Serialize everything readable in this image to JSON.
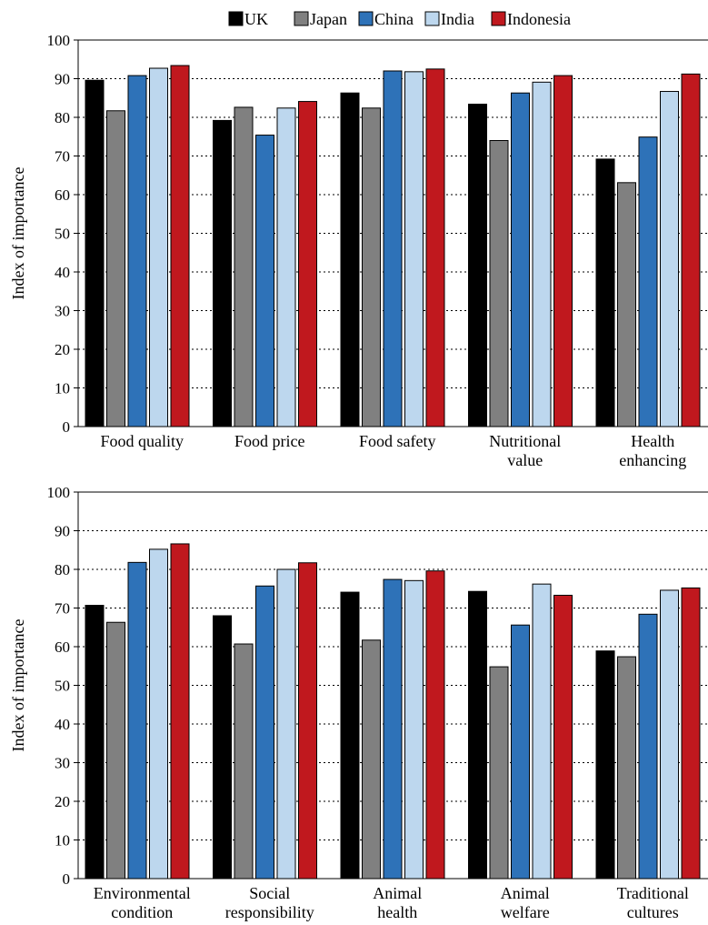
{
  "chart_data": [
    {
      "type": "bar",
      "ylabel": "Index of importance",
      "ylim": [
        0,
        100
      ],
      "yticks": [
        0,
        10,
        20,
        30,
        40,
        50,
        60,
        70,
        80,
        90,
        100
      ],
      "grid": "horizontal dotted",
      "legend": "top",
      "categories": [
        [
          "Food quality"
        ],
        [
          "Food price"
        ],
        [
          "Food safety"
        ],
        [
          "Nutritional",
          "value"
        ],
        [
          "Health",
          "enhancing"
        ]
      ],
      "series": [
        {
          "name": "UK",
          "color": "#000000",
          "values": [
            89.6,
            79.2,
            86.3,
            83.4,
            69.2
          ]
        },
        {
          "name": "Japan",
          "color": "#808080",
          "values": [
            81.7,
            82.6,
            82.4,
            74.0,
            63.1
          ]
        },
        {
          "name": "China",
          "color": "#2e72b8",
          "values": [
            90.8,
            75.4,
            92.0,
            86.3,
            74.9
          ]
        },
        {
          "name": "India",
          "color": "#bdd7ee",
          "values": [
            92.7,
            82.4,
            91.8,
            89.1,
            86.7
          ]
        },
        {
          "name": "Indonesia",
          "color": "#c0181e",
          "values": [
            93.4,
            84.1,
            92.5,
            90.8,
            91.2
          ]
        }
      ]
    },
    {
      "type": "bar",
      "ylabel": "Index of importance",
      "ylim": [
        0,
        100
      ],
      "yticks": [
        0,
        10,
        20,
        30,
        40,
        50,
        60,
        70,
        80,
        90,
        100
      ],
      "grid": "horizontal dotted",
      "categories": [
        [
          "Environmental",
          "condition"
        ],
        [
          "Social",
          "responsibility"
        ],
        [
          "Animal",
          "health"
        ],
        [
          "Animal",
          "welfare"
        ],
        [
          "Traditional",
          "cultures"
        ]
      ],
      "series": [
        {
          "name": "UK",
          "color": "#000000",
          "values": [
            70.7,
            68.0,
            74.1,
            74.3,
            58.9
          ]
        },
        {
          "name": "Japan",
          "color": "#808080",
          "values": [
            66.3,
            60.7,
            61.7,
            54.8,
            57.4
          ]
        },
        {
          "name": "China",
          "color": "#2e72b8",
          "values": [
            81.8,
            75.7,
            77.4,
            65.6,
            68.4
          ]
        },
        {
          "name": "India",
          "color": "#bdd7ee",
          "values": [
            85.2,
            80.0,
            77.1,
            76.2,
            74.6
          ]
        },
        {
          "name": "Indonesia",
          "color": "#c0181e",
          "values": [
            86.6,
            81.7,
            79.6,
            73.3,
            75.2
          ]
        }
      ]
    }
  ]
}
